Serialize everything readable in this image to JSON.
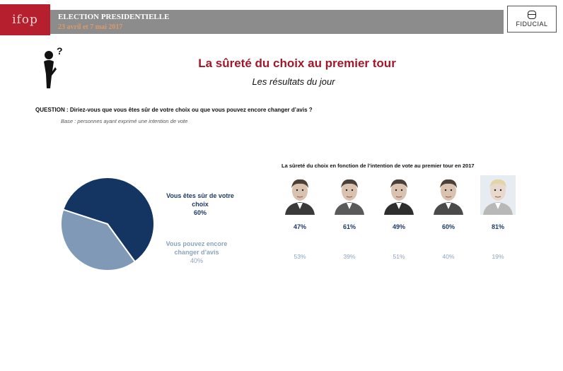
{
  "header": {
    "logo": "ifop",
    "title": "ELECTION PRESIDENTIELLE",
    "dates": "23 avril et 7 mai 2017",
    "sponsor": "FIDUCIAL"
  },
  "page": {
    "title": "La sûreté du choix au premier tour",
    "subtitle": "Les résultats du jour",
    "question": "QUESTION : Diriez-vous que vous êtes sûr de votre choix ou que vous pouvez encore changer d’avis ?",
    "base": "Base : personnes ayant exprimé une intention de vote"
  },
  "colors": {
    "sure": "#143462",
    "change": "#7f99b6",
    "title": "#a3172b"
  },
  "chart_data": [
    {
      "type": "pie",
      "slices": [
        {
          "label": "Vous êtes sûr de votre choix",
          "value": 60,
          "value_label": "60%",
          "color": "#143462"
        },
        {
          "label": "Vous pouvez encore changer d’avis",
          "value": 40,
          "value_label": "40%",
          "color": "#7f99b6"
        }
      ]
    },
    {
      "type": "table",
      "title": "La sûreté du choix en fonction de l’intention de vote au premier tour en 2017",
      "candidates": [
        {
          "icon": "candidate-1-portrait",
          "sure": 47,
          "change": 53,
          "sure_label": "47%",
          "change_label": "53%"
        },
        {
          "icon": "candidate-2-portrait",
          "sure": 61,
          "change": 39,
          "sure_label": "61%",
          "change_label": "39%"
        },
        {
          "icon": "candidate-3-portrait",
          "sure": 49,
          "change": 51,
          "sure_label": "49%",
          "change_label": "51%"
        },
        {
          "icon": "candidate-4-portrait",
          "sure": 60,
          "change": 40,
          "sure_label": "60%",
          "change_label": "40%"
        },
        {
          "icon": "candidate-5-portrait",
          "sure": 81,
          "change": 19,
          "sure_label": "81%",
          "change_label": "19%"
        }
      ]
    }
  ]
}
